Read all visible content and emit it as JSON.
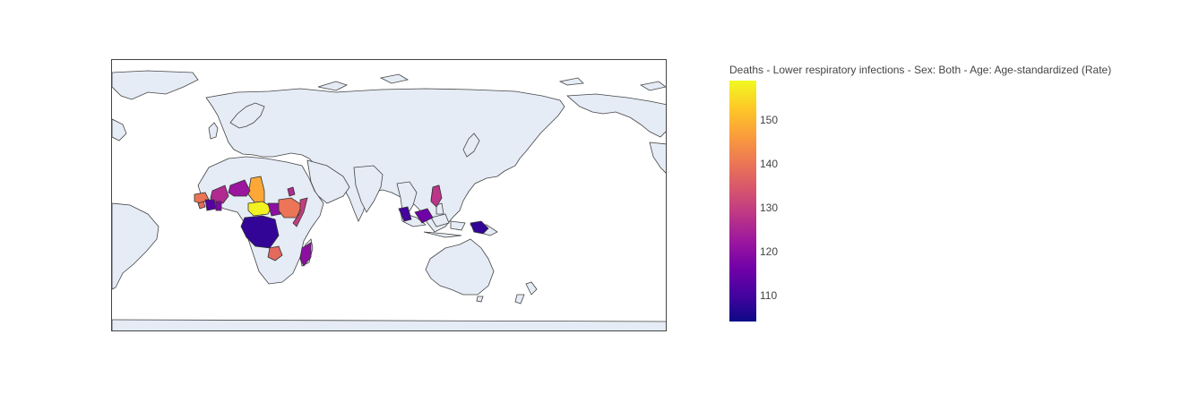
{
  "map": {
    "projection": "equirectangular",
    "land_color": "#e5ecf6",
    "border_color": "#444444",
    "highlighted_regions": [
      {
        "name": "Chad",
        "value": 148
      },
      {
        "name": "Niger",
        "value": 122
      },
      {
        "name": "Mali",
        "value": 126
      },
      {
        "name": "Guinea",
        "value": 140
      },
      {
        "name": "Sierra Leone",
        "value": 138
      },
      {
        "name": "Cote d'Ivoire",
        "value": 112
      },
      {
        "name": "Ghana",
        "value": 118
      },
      {
        "name": "Central African Republic",
        "value": 158
      },
      {
        "name": "South Sudan",
        "value": 120
      },
      {
        "name": "Ethiopia",
        "value": 140
      },
      {
        "name": "Somalia",
        "value": 130
      },
      {
        "name": "Eritrea",
        "value": 126
      },
      {
        "name": "Democratic Republic of Congo",
        "value": 108
      },
      {
        "name": "Zimbabwe",
        "value": 138
      },
      {
        "name": "Madagascar",
        "value": 120
      },
      {
        "name": "Philippines",
        "value": 128
      },
      {
        "name": "Malaysia",
        "value": 110
      },
      {
        "name": "Indonesia",
        "value": 116
      },
      {
        "name": "Papua New Guinea",
        "value": 108
      }
    ]
  },
  "colorbar": {
    "title": "Deaths - Lower respiratory infections - Sex: Both - Age: Age-standardized (Rate)",
    "colorscale": [
      "#0d0887",
      "#46039f",
      "#7201a8",
      "#9c179e",
      "#bd3786",
      "#d8576b",
      "#ed7953",
      "#fb9f3a",
      "#fdca26",
      "#f0f921"
    ],
    "min": 104,
    "max": 159,
    "ticks": [
      "110",
      "120",
      "130",
      "140",
      "150"
    ]
  }
}
